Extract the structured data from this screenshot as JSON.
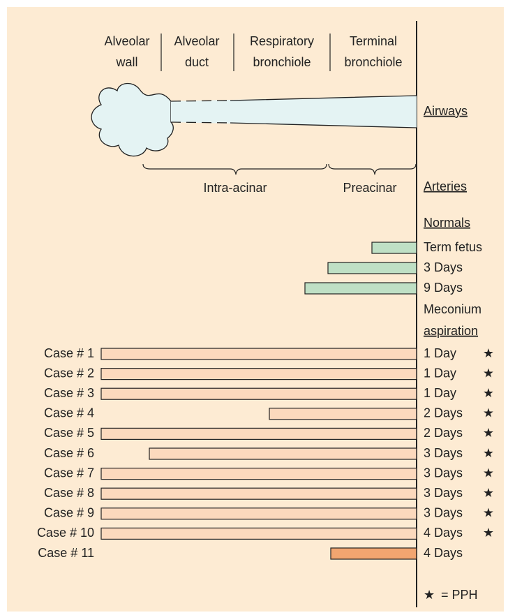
{
  "header": {
    "columns": [
      [
        "Alveolar",
        "wall"
      ],
      [
        "Alveolar",
        "duct"
      ],
      [
        "Respiratory",
        "bronchiole"
      ],
      [
        "Terminal",
        "bronchiole"
      ]
    ]
  },
  "airways_label": "Airways",
  "segments": [
    "Intra-acinar",
    "Preacinar"
  ],
  "arteries_label": "Arteries",
  "normals": {
    "heading": "Normals",
    "rows": [
      "Term fetus",
      "3 Days",
      "9 Days"
    ]
  },
  "meconium": {
    "heading": [
      "Meconium",
      "aspiration"
    ],
    "cases": [
      {
        "name": "Case # 1",
        "age": "1 Day",
        "pph": true
      },
      {
        "name": "Case # 2",
        "age": "1 Day",
        "pph": true
      },
      {
        "name": "Case # 3",
        "age": "1 Day",
        "pph": true
      },
      {
        "name": "Case # 4",
        "age": "2 Days",
        "pph": true
      },
      {
        "name": "Case # 5",
        "age": "2 Days",
        "pph": true
      },
      {
        "name": "Case # 6",
        "age": "3 Days",
        "pph": true
      },
      {
        "name": "Case # 7",
        "age": "3 Days",
        "pph": true
      },
      {
        "name": "Case # 8",
        "age": "3 Days",
        "pph": true
      },
      {
        "name": "Case # 9",
        "age": "3 Days",
        "pph": true
      },
      {
        "name": "Case # 10",
        "age": "4 Days",
        "pph": true
      },
      {
        "name": "Case # 11",
        "age": "4 Days",
        "pph": false
      }
    ]
  },
  "legend": {
    "symbol": "★",
    "text": "= PPH"
  }
}
